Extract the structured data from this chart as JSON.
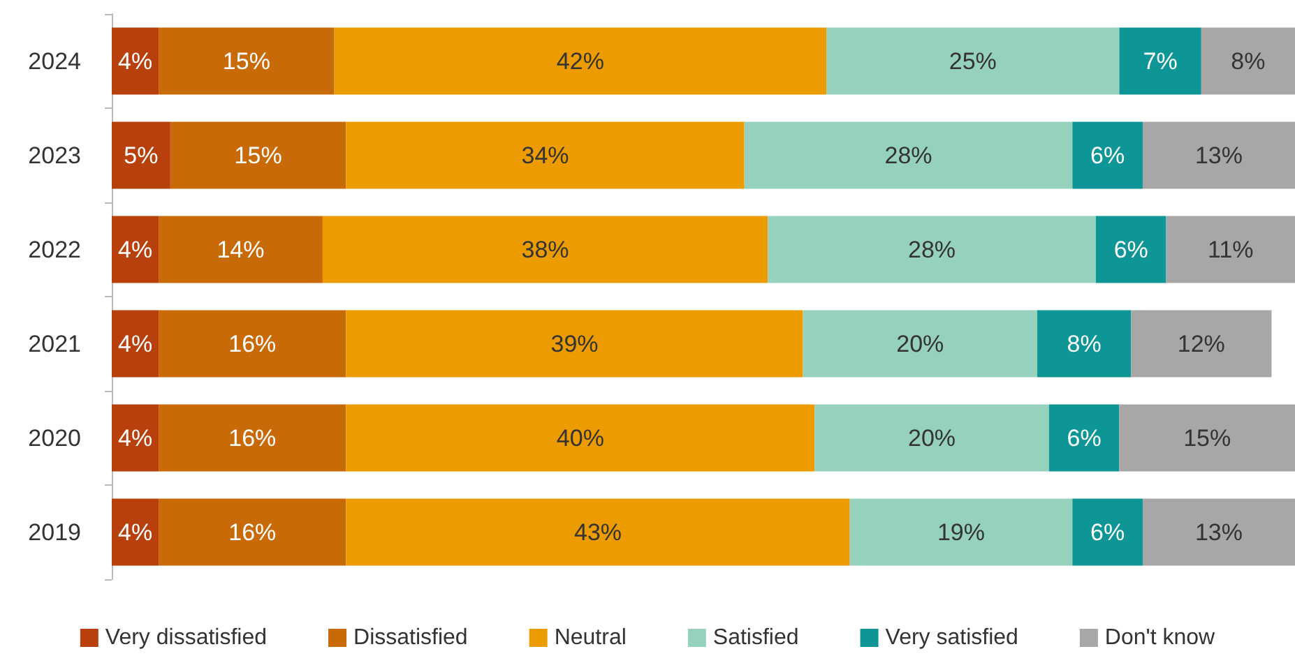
{
  "chart_data": {
    "type": "bar",
    "orientation": "horizontal",
    "stacked": true,
    "legend": "bottom",
    "categories": [
      "2024",
      "2023",
      "2022",
      "2021",
      "2020",
      "2019"
    ],
    "series": [
      {
        "name": "Very dissatisfied",
        "color": "#b8400c",
        "values": [
          4,
          5,
          4,
          4,
          4,
          4
        ],
        "value_labels": [
          "4%",
          "5%",
          "4%",
          "4%",
          "4%",
          "4%"
        ]
      },
      {
        "name": "Dissatisfied",
        "color": "#c96a08",
        "values": [
          15,
          15,
          14,
          16,
          16,
          16
        ],
        "value_labels": [
          "15%",
          "15%",
          "14%",
          "16%",
          "16%",
          "16%"
        ]
      },
      {
        "name": "Neutral",
        "color": "#ec9c00",
        "values": [
          42,
          34,
          38,
          39,
          40,
          43
        ],
        "value_labels": [
          "42%",
          "34%",
          "38%",
          "39%",
          "40%",
          "43%"
        ]
      },
      {
        "name": "Satisfied",
        "color": "#95d1bd",
        "values": [
          25,
          28,
          28,
          20,
          20,
          19
        ],
        "value_labels": [
          "25%",
          "28%",
          "28%",
          "20%",
          "20%",
          "19%"
        ]
      },
      {
        "name": "Very satisfied",
        "color": "#0e9596",
        "values": [
          7,
          6,
          6,
          8,
          6,
          6
        ],
        "value_labels": [
          "7%",
          "6%",
          "6%",
          "8%",
          "6%",
          "6%"
        ]
      },
      {
        "name": "Don't know",
        "color": "#a7a7a7",
        "values": [
          8,
          13,
          11,
          12,
          15,
          13
        ],
        "value_labels": [
          "8%",
          "13%",
          "11%",
          "12%",
          "15%",
          "13%"
        ]
      }
    ]
  }
}
